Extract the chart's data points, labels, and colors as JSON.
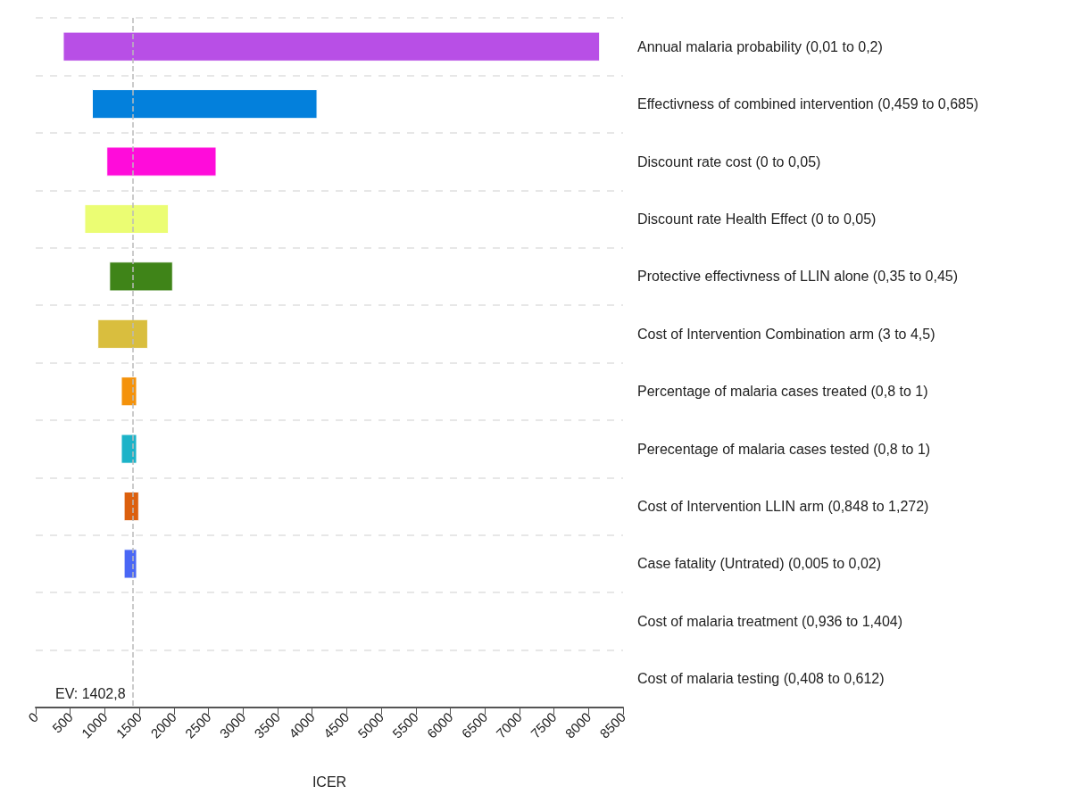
{
  "chart_data": {
    "type": "bar",
    "orientation": "horizontal",
    "xlabel": "ICER",
    "categories": [
      "Annual malaria probability (0,01 to 0,2)",
      "Effectivness of combined intervention (0,459 to 0,685)",
      "Discount rate cost (0 to 0,05)",
      "Discount rate Health Effect (0 to 0,05)",
      "Protective effectivness of LLIN alone (0,35 to 0,45)",
      "Cost of Intervention Combination arm (3 to 4,5)",
      "Percentage of malaria cases treated (0,8 to 1)",
      "Perecentage of malaria cases tested (0,8 to 1)",
      "Cost of Intervention LLIN arm (0,848 to 1,272)",
      "Case fatality (Untrated) (0,005 to 0,02)",
      "Cost of malaria treatment (0,936 to 1,404)",
      "Cost of malaria testing (0,408 to 0,612)"
    ],
    "base": [
      400,
      820,
      1030,
      710,
      1070,
      900,
      1240,
      1240,
      1280,
      1280,
      null,
      null
    ],
    "values": [
      7760,
      3250,
      1580,
      1210,
      910,
      720,
      220,
      220,
      210,
      180,
      null,
      null
    ],
    "colors": [
      "#b84fe6",
      "#0380dc",
      "#ff0cda",
      "#ebfd73",
      "#3f8418",
      "#d9be3e",
      "#f4920b",
      "#1cb3c8",
      "#dc600e",
      "#4a67f5",
      null,
      null
    ],
    "xlim": [
      0,
      8500
    ],
    "xticks": [
      0,
      500,
      1000,
      1500,
      2000,
      2500,
      3000,
      3500,
      4000,
      4500,
      5000,
      5500,
      6000,
      6500,
      7000,
      7500,
      8000,
      8500
    ],
    "ref_lines": [
      {
        "axis": "x",
        "value": 1402.8,
        "label": "EV: 1402,8",
        "color": "#bbbbbb",
        "line_style": "dashed"
      }
    ],
    "grid": "y"
  }
}
